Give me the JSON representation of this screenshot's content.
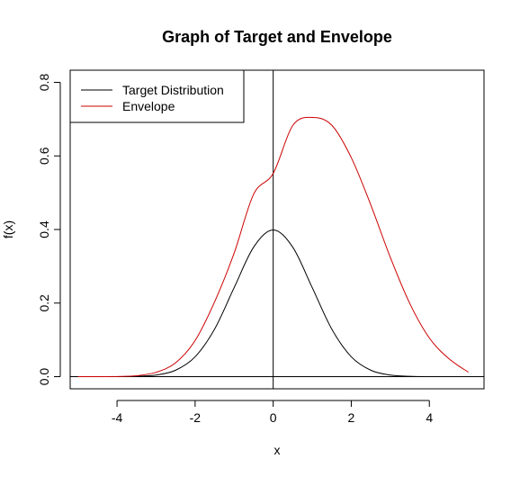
{
  "chart_data": {
    "type": "line",
    "title": "Graph of Target and Envelope",
    "xlabel": "x",
    "ylabel": "f(x)",
    "xlim": [
      -5.2,
      5.4
    ],
    "ylim": [
      -0.033,
      0.833
    ],
    "x_ticks": [
      -4,
      -2,
      0,
      2,
      4
    ],
    "x_tick_labels": [
      "-4",
      "-2",
      "0",
      "2",
      "4"
    ],
    "y_ticks": [
      0.0,
      0.2,
      0.4,
      0.6,
      0.8
    ],
    "y_tick_labels": [
      "0.0",
      "0.2",
      "0.4",
      "0.6",
      "0.8"
    ],
    "grid": false,
    "legend_position": "top-left",
    "reference_lines": {
      "horizontal_y": 0,
      "vertical_x": 0
    },
    "series": [
      {
        "name": "Target Distribution",
        "color": "#000000",
        "x": [
          -5.0,
          -4.5,
          -4.0,
          -3.5,
          -3.0,
          -2.5,
          -2.0,
          -1.5,
          -1.0,
          -0.5,
          0.0,
          0.5,
          1.0,
          1.5,
          2.0,
          2.5,
          3.0,
          3.5,
          4.0,
          4.5,
          5.0
        ],
        "y": [
          0.0,
          0.0,
          0.0001,
          0.0009,
          0.0044,
          0.0175,
          0.054,
          0.1295,
          0.242,
          0.3521,
          0.3989,
          0.3521,
          0.242,
          0.1295,
          0.054,
          0.0175,
          0.0044,
          0.0009,
          0.0001,
          0.0,
          0.0
        ]
      },
      {
        "name": "Envelope",
        "color": "#cc0000",
        "x": [
          -5.0,
          -4.5,
          -4.0,
          -3.5,
          -3.0,
          -2.5,
          -2.0,
          -1.5,
          -1.0,
          -0.5,
          0.0,
          0.5,
          1.0,
          1.5,
          2.0,
          2.5,
          3.0,
          3.5,
          4.0,
          4.5,
          5.0
        ],
        "y": [
          0.0,
          0.0,
          0.0003,
          0.0024,
          0.0118,
          0.0377,
          0.0981,
          0.2035,
          0.3359,
          0.4962,
          0.5524,
          0.6825,
          0.7047,
          0.6834,
          0.5953,
          0.4668,
          0.3243,
          0.1987,
          0.1052,
          0.0489,
          0.0121
        ]
      }
    ]
  }
}
